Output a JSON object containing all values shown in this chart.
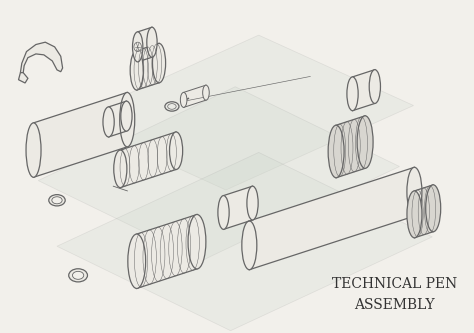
{
  "title_line1": "TECHNICAL PEN",
  "title_line2": "ASSEMBLY",
  "bg_color": "#f2f0eb",
  "line_color": "#666666",
  "fill_color": "#eceae4",
  "fill_dark": "#d8d6d0",
  "plane_color": "#d0d8d0",
  "title_fontsize": 10,
  "figsize": [
    4.74,
    3.33
  ],
  "dpi": 100
}
